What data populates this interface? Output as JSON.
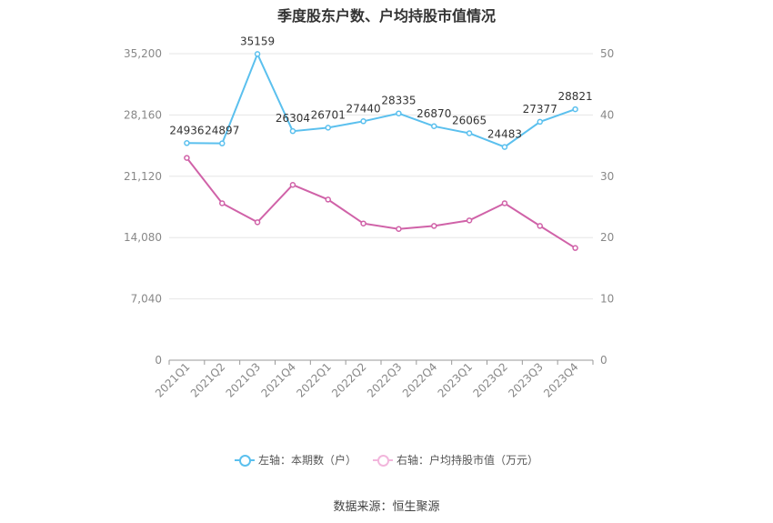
{
  "chart_data": {
    "type": "line",
    "title": "季度股东户数、户均持股市值情况",
    "categories": [
      "2021Q1",
      "2021Q2",
      "2021Q3",
      "2021Q4",
      "2022Q1",
      "2022Q2",
      "2022Q3",
      "2022Q4",
      "2023Q1",
      "2023Q2",
      "2023Q3",
      "2023Q4"
    ],
    "left_axis": {
      "ticks": [
        "0",
        "7,040",
        "14,080",
        "21,120",
        "28,160",
        "35,200"
      ],
      "min": 0,
      "max": 35200
    },
    "right_axis": {
      "ticks": [
        "0",
        "10",
        "20",
        "30",
        "40",
        "50"
      ],
      "min": 0,
      "max": 50
    },
    "series": [
      {
        "name": "左轴：本期数（户）",
        "axis": "left",
        "color": "#5bc0ee",
        "values": [
          24936,
          24897,
          35159,
          26304,
          26701,
          27440,
          28335,
          26870,
          26065,
          24483,
          27377,
          28821
        ],
        "labels": [
          "24936",
          "24897",
          "35159",
          "26304",
          "26701",
          "27440",
          "28335",
          "26870",
          "26065",
          "24483",
          "27377",
          "28821"
        ]
      },
      {
        "name": "右轴：户均持股市值（万元）",
        "axis": "right",
        "color": "#d062a8",
        "values": [
          33.0,
          25.6,
          22.5,
          28.6,
          26.2,
          22.3,
          21.4,
          21.9,
          22.8,
          25.6,
          21.9,
          18.3
        ]
      }
    ],
    "grid": true,
    "legend_position": "bottom"
  },
  "source_text": "数据来源：恒生聚源"
}
